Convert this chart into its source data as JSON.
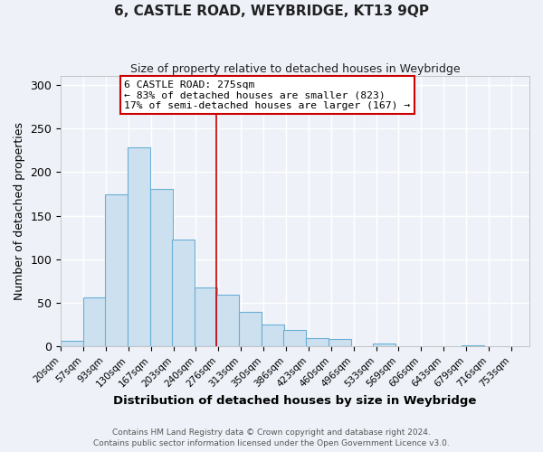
{
  "title": "6, CASTLE ROAD, WEYBRIDGE, KT13 9QP",
  "subtitle": "Size of property relative to detached houses in Weybridge",
  "xlabel": "Distribution of detached houses by size in Weybridge",
  "ylabel": "Number of detached properties",
  "bar_left_edges": [
    20,
    57,
    93,
    130,
    167,
    203,
    240,
    276,
    313,
    350,
    386,
    423,
    460,
    496,
    533,
    569,
    606,
    643,
    679,
    716
  ],
  "bar_heights": [
    7,
    56,
    175,
    228,
    181,
    123,
    68,
    60,
    40,
    25,
    19,
    10,
    9,
    0,
    4,
    0,
    0,
    0,
    2,
    0
  ],
  "bin_width": 37,
  "bar_fill": "#cce0f0",
  "bar_edge": "#6baed6",
  "vline_x": 276,
  "vline_color": "#cc0000",
  "annotation_line1": "6 CASTLE ROAD: 275sqm",
  "annotation_line2": "← 83% of detached houses are smaller (823)",
  "annotation_line3": "17% of semi-detached houses are larger (167) →",
  "annotation_box_edge": "#cc0000",
  "ylim": [
    0,
    310
  ],
  "xtick_labels": [
    "20sqm",
    "57sqm",
    "93sqm",
    "130sqm",
    "167sqm",
    "203sqm",
    "240sqm",
    "276sqm",
    "313sqm",
    "350sqm",
    "386sqm",
    "423sqm",
    "460sqm",
    "496sqm",
    "533sqm",
    "569sqm",
    "606sqm",
    "643sqm",
    "679sqm",
    "716sqm",
    "753sqm"
  ],
  "footnote1": "Contains HM Land Registry data © Crown copyright and database right 2024.",
  "footnote2": "Contains public sector information licensed under the Open Government Licence v3.0.",
  "bg_color": "#eef2f8",
  "plot_bg": "#eef2f8",
  "grid_color": "#ffffff",
  "title_fontsize": 11,
  "subtitle_fontsize": 9,
  "ytick_labels": [
    0,
    50,
    100,
    150,
    200,
    250,
    300
  ]
}
